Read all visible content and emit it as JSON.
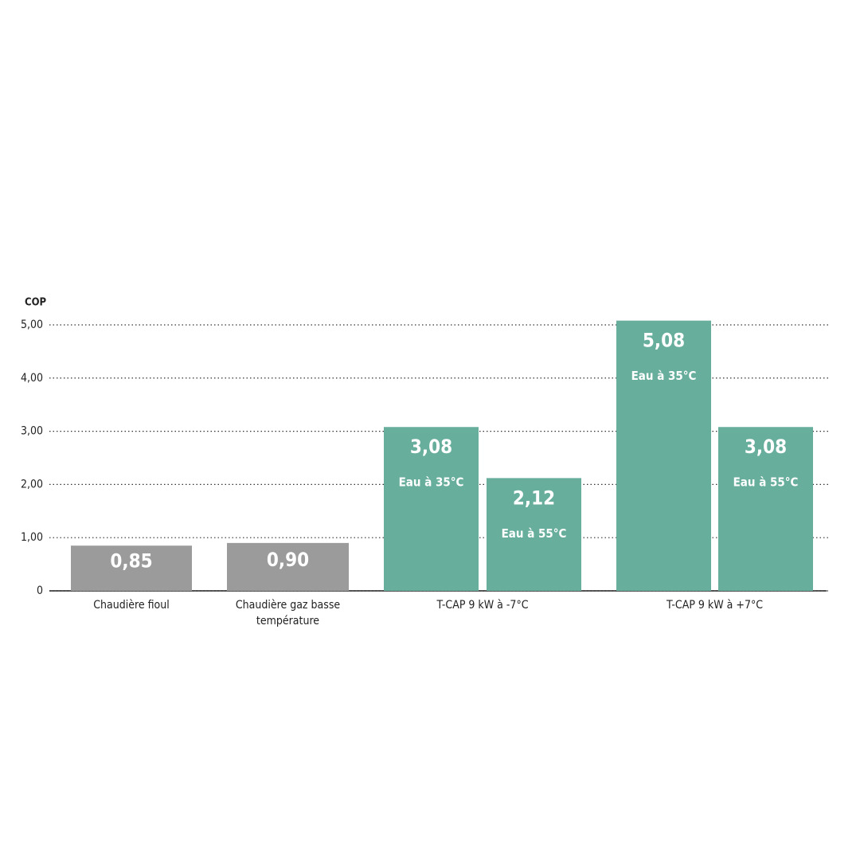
{
  "chart_data": {
    "type": "bar",
    "y_label": "COP",
    "ylim": [
      0,
      5.1
    ],
    "yticks": [
      0,
      {
        "value": 1,
        "label": "1,00"
      },
      {
        "value": 2,
        "label": "2,00"
      },
      {
        "value": 3,
        "label": "3,00"
      },
      {
        "value": 4,
        "label": "4,00"
      },
      {
        "value": 5,
        "label": "5,00"
      }
    ],
    "grid": true,
    "groups": [
      {
        "category": [
          "Chaudière fioul"
        ],
        "color": "#9b9b9b",
        "values": [
          0.85
        ],
        "value_labels": [
          "0,85"
        ]
      },
      {
        "category": [
          "Chaudière gaz basse",
          "température"
        ],
        "color": "#9b9b9b",
        "values": [
          0.9
        ],
        "value_labels": [
          "0,90"
        ]
      },
      {
        "category": [
          "T-CAP 9 kW à -7°C"
        ],
        "color": "#68ae9c",
        "values": [
          3.08,
          2.12
        ],
        "value_labels": [
          "3,08",
          "2,12"
        ],
        "notes": [
          "Eau à 35°C",
          "Eau à 55°C"
        ]
      },
      {
        "category": [
          "T-CAP 9 kW à +7°C"
        ],
        "color": "#68ae9c",
        "values": [
          5.08,
          3.08
        ],
        "value_labels": [
          "5,08",
          "3,08"
        ],
        "notes": [
          "Eau à 35°C",
          "Eau à 55°C"
        ]
      }
    ]
  }
}
